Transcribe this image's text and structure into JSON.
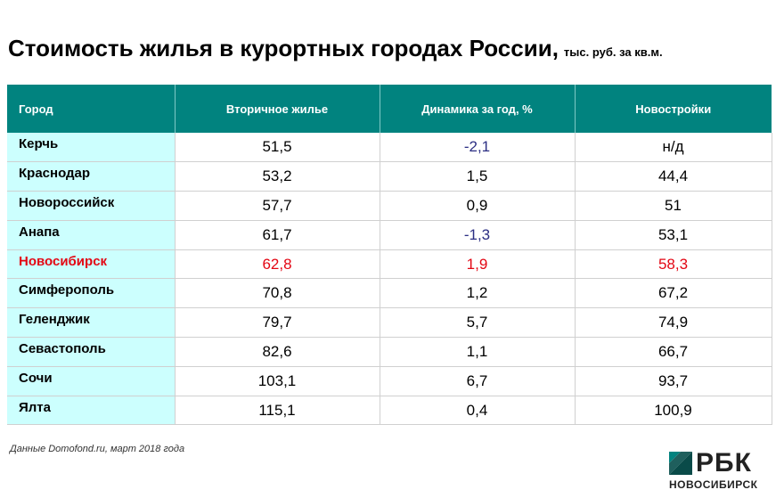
{
  "title": "Стоимость жилья в курортных городах России,",
  "unit": "тыс. руб. за кв.м.",
  "chart_data": {
    "type": "table",
    "columns": [
      "Город",
      "Вторичное жилье",
      "Динамика за год, %",
      "Новостройки"
    ],
    "rows": [
      {
        "city": "Керчь",
        "secondary": "51,5",
        "change": "-2,1",
        "new_build": "н/д"
      },
      {
        "city": "Краснодар",
        "secondary": "53,2",
        "change": "1,5",
        "new_build": "44,4"
      },
      {
        "city": "Новороссийск",
        "secondary": "57,7",
        "change": "0,9",
        "new_build": "51"
      },
      {
        "city": "Анапа",
        "secondary": "61,7",
        "change": "-1,3",
        "new_build": "53,1"
      },
      {
        "city": "Новосибирск",
        "secondary": "62,8",
        "change": "1,9",
        "new_build": "58,3"
      },
      {
        "city": "Симферополь",
        "secondary": "70,8",
        "change": "1,2",
        "new_build": "67,2"
      },
      {
        "city": "Геленджик",
        "secondary": "79,7",
        "change": "5,7",
        "new_build": "74,9"
      },
      {
        "city": "Севастополь",
        "secondary": "82,6",
        "change": "1,1",
        "new_build": "66,7"
      },
      {
        "city": "Сочи",
        "secondary": "103,1",
        "change": "6,7",
        "new_build": "93,7"
      },
      {
        "city": "Ялта",
        "secondary": "115,1",
        "change": "0,4",
        "new_build": "100,9"
      }
    ],
    "highlight_row": "Новосибирск"
  },
  "colors": {
    "header_bg": "#01837f",
    "city_bg": "#ccfffe",
    "highlight": "#e30613",
    "negative": "#2b2e83"
  },
  "source": "Данные Domofond.ru, март 2018 года",
  "logo": {
    "brand": "РБК",
    "city": "НОВОСИБИРСК",
    "icon": "rbc-logo-icon"
  }
}
